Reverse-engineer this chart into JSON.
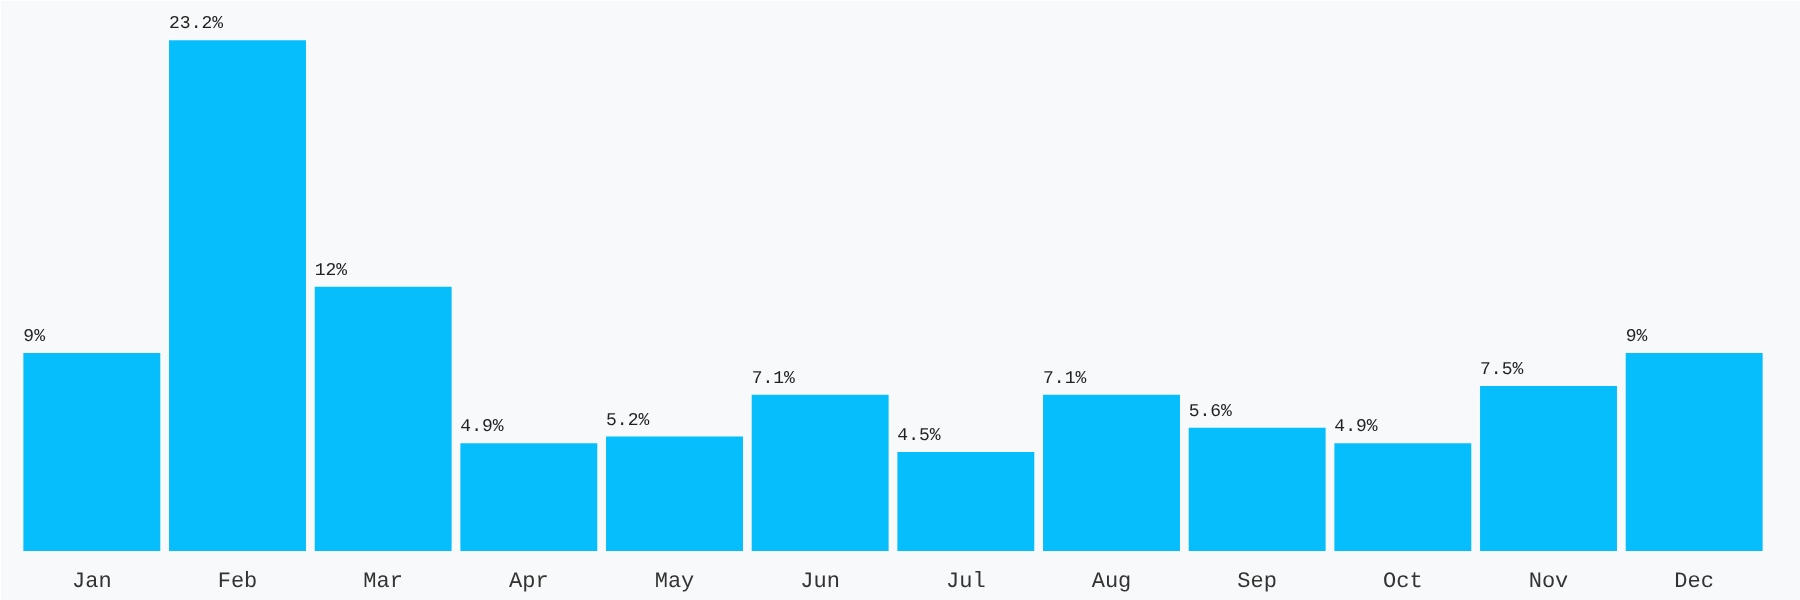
{
  "chart_data": {
    "type": "bar",
    "categories": [
      "Jan",
      "Feb",
      "Mar",
      "Apr",
      "May",
      "Jun",
      "Jul",
      "Aug",
      "Sep",
      "Oct",
      "Nov",
      "Dec"
    ],
    "values": [
      9,
      23.2,
      12,
      4.9,
      5.2,
      7.1,
      4.5,
      7.1,
      5.6,
      4.9,
      7.5,
      9
    ],
    "value_labels": [
      "9%",
      "23.2%",
      "12%",
      "4.9%",
      "5.2%",
      "7.1%",
      "4.5%",
      "7.1%",
      "5.6%",
      "4.9%",
      "7.5%",
      "9%"
    ],
    "color": "#06befc",
    "grid": false
  }
}
